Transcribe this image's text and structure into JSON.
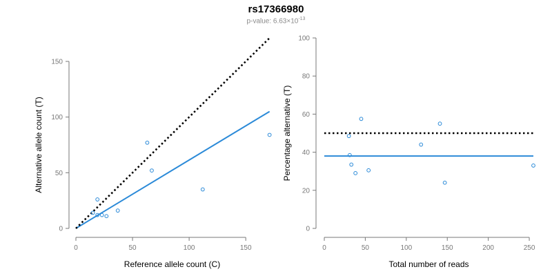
{
  "title": "rs17366980",
  "subtitle": {
    "prefix": "p-value: 6.63×10",
    "exponent": "-13"
  },
  "colors": {
    "points": "#2b8ad8",
    "fit_line": "#2b8ad8",
    "reference_line": "#000000",
    "axis": "#777777"
  },
  "chart_data": [
    {
      "type": "scatter",
      "xlabel": "Reference allele count (C)",
      "ylabel": "Alternative allele count (T)",
      "xlim": [
        0,
        170
      ],
      "ylim": [
        0,
        150
      ],
      "xticks": [
        0,
        50,
        100,
        150
      ],
      "yticks": [
        0,
        50,
        100,
        150
      ],
      "grid": false,
      "points": {
        "x": [
          15,
          19,
          19,
          23,
          27,
          37,
          63,
          67,
          112,
          171
        ],
        "y": [
          14,
          12,
          26,
          12,
          11,
          16,
          77,
          52,
          35,
          84
        ]
      },
      "lines": [
        {
          "name": "",
          "style": "solid",
          "color": "#2b8ad8",
          "x": [
            0,
            171
          ],
          "y": [
            0,
            105
          ]
        },
        {
          "name": "",
          "style": "dotted",
          "color": "#000000",
          "x": [
            0,
            171
          ],
          "y": [
            0,
            171
          ]
        }
      ]
    },
    {
      "type": "scatter",
      "xlabel": "Total number of reads",
      "ylabel": "Percentage alternative (T)",
      "xlim": [
        0,
        255
      ],
      "ylim": [
        0,
        100
      ],
      "xticks": [
        0,
        50,
        100,
        150,
        200,
        250
      ],
      "yticks": [
        0,
        20,
        40,
        60,
        80,
        100
      ],
      "grid": false,
      "points": {
        "x": [
          30,
          31,
          33,
          38,
          45,
          54,
          118,
          141,
          147,
          255
        ],
        "y": [
          48.5,
          38.5,
          33.5,
          29,
          57.5,
          30.5,
          44,
          55,
          24,
          33
        ]
      },
      "lines": [
        {
          "name": "",
          "style": "solid",
          "color": "#2b8ad8",
          "x": [
            0,
            255
          ],
          "y": [
            38,
            38
          ]
        },
        {
          "name": "",
          "style": "dotted",
          "color": "#000000",
          "x": [
            0,
            255
          ],
          "y": [
            50,
            50
          ]
        }
      ]
    }
  ]
}
